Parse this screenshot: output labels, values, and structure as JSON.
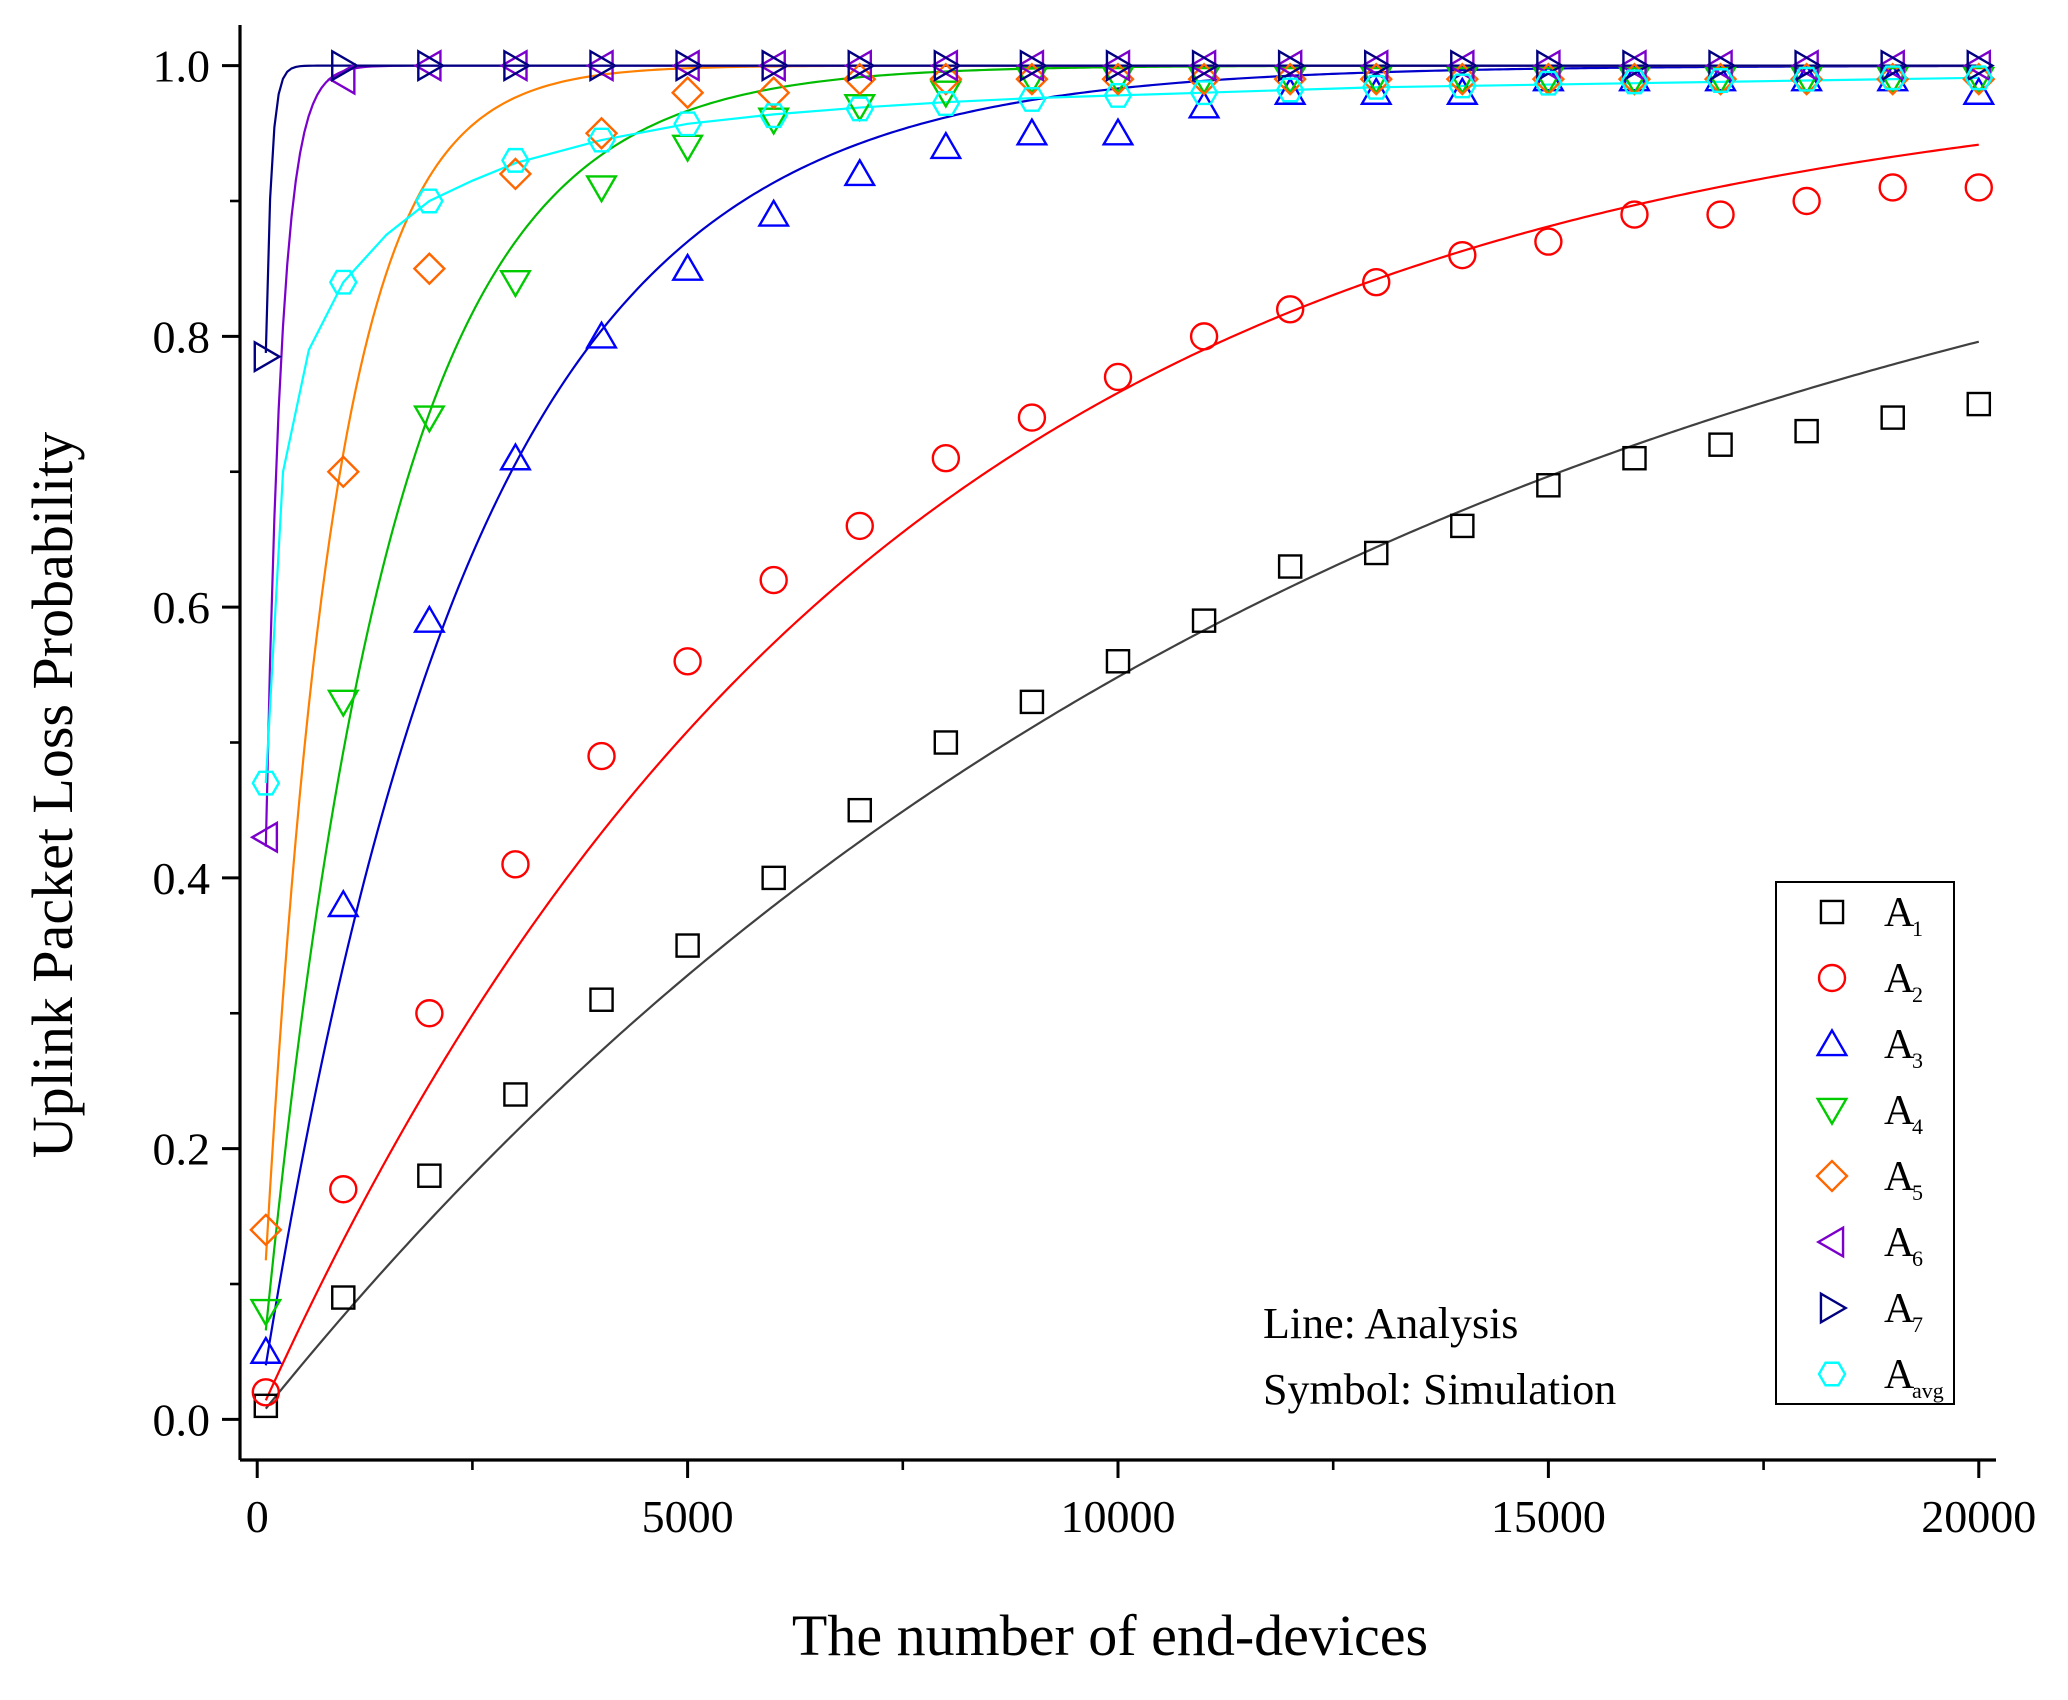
{
  "chart_data": {
    "type": "line+scatter",
    "xlabel": "The number of end-devices",
    "ylabel": "Uplink Packet Loss Probability",
    "xlim": [
      -200,
      20200
    ],
    "ylim": [
      -0.03,
      1.03
    ],
    "xticks": [
      0,
      5000,
      10000,
      15000,
      20000
    ],
    "xtick_labels": [
      "0",
      "5000",
      "10000",
      "15000",
      "20000"
    ],
    "yticks": [
      0.0,
      0.2,
      0.4,
      0.6,
      0.8,
      1.0
    ],
    "ytick_labels": [
      "0.0",
      "0.2",
      "0.4",
      "0.6",
      "0.8",
      "1.0"
    ],
    "legend_position": "bottom-right",
    "annotation": {
      "line1": "Line: Analysis",
      "line2": "Symbol: Simulation"
    },
    "series": [
      {
        "id": "a1",
        "label": "A",
        "sub": "1",
        "color": "#000000",
        "line_color": "#404040",
        "marker": "square",
        "analysis_k": 7.95e-05,
        "sim_x": [
          100,
          1000,
          2000,
          3000,
          4000,
          5000,
          6000,
          7000,
          8000,
          9000,
          10000,
          11000,
          12000,
          13000,
          14000,
          15000,
          16000,
          17000,
          18000,
          19000,
          20000
        ],
        "sim_y": [
          0.01,
          0.09,
          0.18,
          0.24,
          0.31,
          0.35,
          0.4,
          0.45,
          0.5,
          0.53,
          0.56,
          0.59,
          0.63,
          0.64,
          0.66,
          0.69,
          0.71,
          0.72,
          0.73,
          0.74,
          0.75
        ]
      },
      {
        "id": "a2",
        "label": "A",
        "sub": "2",
        "color": "#ff0000",
        "line_color": "#ff0000",
        "marker": "circle",
        "analysis_k": 0.000142,
        "sim_x": [
          100,
          1000,
          2000,
          3000,
          4000,
          5000,
          6000,
          7000,
          8000,
          9000,
          10000,
          11000,
          12000,
          13000,
          14000,
          15000,
          16000,
          17000,
          18000,
          19000,
          20000
        ],
        "sim_y": [
          0.02,
          0.17,
          0.3,
          0.41,
          0.49,
          0.56,
          0.62,
          0.66,
          0.71,
          0.74,
          0.77,
          0.8,
          0.82,
          0.84,
          0.86,
          0.87,
          0.89,
          0.89,
          0.9,
          0.91,
          0.91
        ]
      },
      {
        "id": "a3",
        "label": "A",
        "sub": "3",
        "color": "#0000ff",
        "line_color": "#0000cc",
        "marker": "triangle-up",
        "analysis_k": 0.000408,
        "sim_x": [
          100,
          1000,
          2000,
          3000,
          4000,
          5000,
          6000,
          7000,
          8000,
          9000,
          10000,
          11000,
          12000,
          13000,
          14000,
          15000,
          16000,
          17000,
          18000,
          19000,
          20000
        ],
        "sim_y": [
          0.05,
          0.38,
          0.59,
          0.71,
          0.8,
          0.85,
          0.89,
          0.92,
          0.94,
          0.95,
          0.95,
          0.97,
          0.98,
          0.98,
          0.98,
          0.99,
          0.99,
          0.99,
          0.99,
          0.99,
          0.98
        ]
      },
      {
        "id": "a4",
        "label": "A",
        "sub": "4",
        "color": "#00cc00",
        "line_color": "#00bb00",
        "marker": "triangle-down",
        "analysis_k": 0.00068,
        "sim_x": [
          100,
          1000,
          2000,
          3000,
          4000,
          5000,
          6000,
          7000,
          8000,
          9000,
          10000,
          11000,
          12000,
          13000,
          14000,
          15000,
          16000,
          17000,
          18000,
          19000,
          20000
        ],
        "sim_y": [
          0.08,
          0.53,
          0.74,
          0.84,
          0.91,
          0.94,
          0.96,
          0.97,
          0.98,
          0.99,
          0.99,
          0.99,
          0.99,
          0.99,
          0.99,
          0.99,
          0.99,
          0.99,
          0.99,
          0.99,
          0.99
        ]
      },
      {
        "id": "a5",
        "label": "A",
        "sub": "5",
        "color": "#ff6600",
        "line_color": "#ff7f00",
        "marker": "diamond",
        "analysis_k": 0.00125,
        "sim_x": [
          100,
          1000,
          2000,
          3000,
          4000,
          5000,
          6000,
          7000,
          8000,
          9000,
          10000,
          11000,
          12000,
          13000,
          14000,
          15000,
          16000,
          17000,
          18000,
          19000,
          20000
        ],
        "sim_y": [
          0.14,
          0.7,
          0.85,
          0.92,
          0.95,
          0.98,
          0.98,
          0.99,
          0.99,
          0.99,
          0.99,
          0.99,
          0.99,
          0.99,
          0.99,
          0.99,
          0.99,
          0.99,
          0.99,
          0.99,
          0.99
        ]
      },
      {
        "id": "a6",
        "label": "A",
        "sub": "6",
        "color": "#7b00cc",
        "line_color": "#7b00cc",
        "marker": "triangle-left",
        "analysis_k": 0.0055,
        "sim_x": [
          100,
          1000,
          2000,
          3000,
          4000,
          5000,
          6000,
          7000,
          8000,
          9000,
          10000,
          11000,
          12000,
          13000,
          14000,
          15000,
          16000,
          17000,
          18000,
          19000,
          20000
        ],
        "sim_y": [
          0.43,
          0.99,
          1.0,
          1.0,
          1.0,
          1.0,
          1.0,
          1.0,
          1.0,
          1.0,
          1.0,
          1.0,
          1.0,
          1.0,
          1.0,
          1.0,
          1.0,
          1.0,
          1.0,
          1.0,
          1.0
        ]
      },
      {
        "id": "a7",
        "label": "A",
        "sub": "7",
        "color": "#000080",
        "line_color": "#000080",
        "marker": "triangle-right",
        "analysis_k": 0.0155,
        "sim_x": [
          100,
          1000,
          2000,
          3000,
          4000,
          5000,
          6000,
          7000,
          8000,
          9000,
          10000,
          11000,
          12000,
          13000,
          14000,
          15000,
          16000,
          17000,
          18000,
          19000,
          20000
        ],
        "sim_y": [
          0.785,
          1.0,
          1.0,
          1.0,
          1.0,
          1.0,
          1.0,
          1.0,
          1.0,
          1.0,
          1.0,
          1.0,
          1.0,
          1.0,
          1.0,
          1.0,
          1.0,
          1.0,
          1.0,
          1.0,
          1.0
        ]
      },
      {
        "id": "aavg",
        "label": "A",
        "sub": "avg",
        "color": "#00ffff",
        "line_color": "#00ffff",
        "marker": "hexagon",
        "analysis_x": [
          100,
          300,
          600,
          1000,
          1500,
          2000,
          2500,
          3000,
          4000,
          5000,
          6000,
          7000,
          8000,
          9000,
          10000,
          11000,
          12000,
          13000,
          14000,
          15000,
          16000,
          17000,
          18000,
          19000,
          20000
        ],
        "analysis_y": [
          0.47,
          0.7,
          0.79,
          0.84,
          0.875,
          0.9,
          0.915,
          0.928,
          0.945,
          0.957,
          0.964,
          0.969,
          0.973,
          0.976,
          0.978,
          0.98,
          0.982,
          0.984,
          0.985,
          0.986,
          0.987,
          0.988,
          0.989,
          0.99,
          0.991
        ],
        "sim_x": [
          100,
          1000,
          2000,
          3000,
          4000,
          5000,
          6000,
          7000,
          8000,
          9000,
          10000,
          11000,
          12000,
          13000,
          14000,
          15000,
          16000,
          17000,
          18000,
          19000,
          20000
        ],
        "sim_y": [
          0.47,
          0.84,
          0.9,
          0.93,
          0.945,
          0.957,
          0.963,
          0.968,
          0.972,
          0.975,
          0.978,
          0.98,
          0.982,
          0.984,
          0.985,
          0.987,
          0.988,
          0.989,
          0.99,
          0.991,
          0.991
        ]
      }
    ]
  }
}
